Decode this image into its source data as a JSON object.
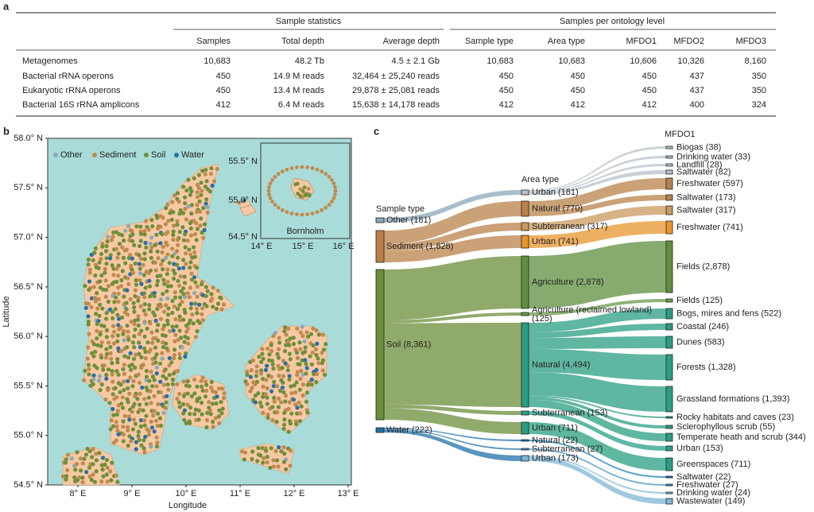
{
  "panel_a": {
    "label": "a",
    "groups": [
      "Sample statistics",
      "Samples per ontology level"
    ],
    "columns": [
      "Samples",
      "Total depth",
      "Average depth",
      "Sample type",
      "Area type",
      "MFDO1",
      "MFDO2",
      "MFDO3"
    ],
    "rows": [
      [
        "Metagenomes",
        "10,683",
        "48.2 Tb",
        "4.5 ± 2.1 Gb",
        "10,683",
        "10,683",
        "10,606",
        "10,326",
        "8,160"
      ],
      [
        "Bacterial rRNA operons",
        "450",
        "14.9 M reads",
        "32,464 ± 25,240 reads",
        "450",
        "450",
        "450",
        "437",
        "350"
      ],
      [
        "Eukaryotic rRNA operons",
        "450",
        "13.4 M reads",
        "29,878 ± 25,081 reads",
        "450",
        "450",
        "450",
        "437",
        "350"
      ],
      [
        "Bacterial 16S rRNA amplicons",
        "412",
        "6.4 M reads",
        "15,638 ± 14,178 reads",
        "412",
        "412",
        "412",
        "400",
        "324"
      ]
    ]
  },
  "panel_b": {
    "label": "b",
    "ylabel": "Latitude",
    "xlabel": "Longitude",
    "yticks": [
      "58.0° N",
      "57.5° N",
      "57.0° N",
      "56.5° N",
      "56.0° N",
      "55.5° N",
      "55.0° N",
      "54.5° N"
    ],
    "xticks": [
      "8° E",
      "9° E",
      "10° E",
      "11° E",
      "12° E",
      "13° E"
    ],
    "legend": [
      "Other",
      "Sediment",
      "Soil",
      "Water"
    ],
    "inset": {
      "title": "Bornholm",
      "yticks": [
        "55.5° N",
        "55.0° N",
        "54.5° N"
      ],
      "xticks": [
        "14° E",
        "15° E",
        "16° E"
      ]
    }
  },
  "panel_c": {
    "label": "c",
    "columns": [
      "Sample type",
      "Area type",
      "MFDO1"
    ],
    "sample_type": [
      "Other (181)",
      "Sediment (1,828)",
      "Soil (8,361)",
      "Water (222)"
    ],
    "area_type": [
      "Urban (181)",
      "Natural (770)",
      "Subterranean (317)",
      "Urban (741)",
      "Agriculture (2,878)",
      [
        "Agriculture (reclaimed lowland)",
        "(125)"
      ],
      "Natural (4,494)",
      "Subterranean (153)",
      "Urban (711)",
      "Natural (22)",
      "Subterranean (27)",
      "Urban (173)"
    ],
    "mfdo1": [
      "Biogas (38)",
      "Drinking water (33)",
      "Landfill (28)",
      "Saltwater (82)",
      "Freshwater (597)",
      "Saltwater (173)",
      "Saltwater (317)",
      "Freshwater (741)",
      "Fields (2,878)",
      "Fields (125)",
      "Bogs, mires and fens (522)",
      "Coastal (246)",
      "Dunes (583)",
      "Forests (1,328)",
      "Grassland formations (1,393)",
      "Rocky habitats and caves (23)",
      "Sclerophyllous scrub (55)",
      "Temperate heath and scrub (344)",
      "Urban (153)",
      "Greenspaces (711)",
      "Saltwater (22)",
      "Freshwater (27)",
      "Drinking water (24)",
      "Wastewater (149)"
    ]
  }
}
